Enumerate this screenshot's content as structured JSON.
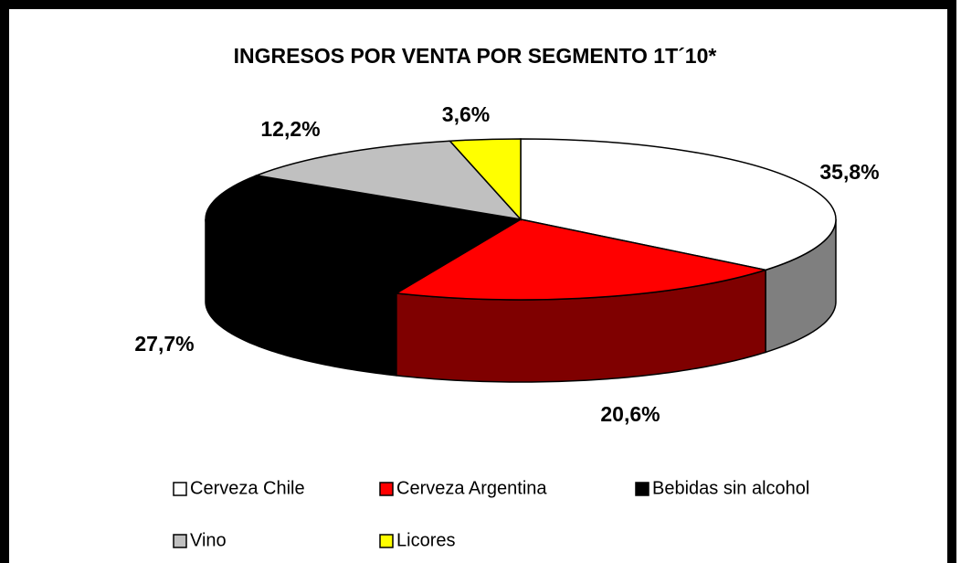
{
  "chart_data": {
    "type": "pie3d",
    "title": "INGRESOS POR VENTA POR SEGMENTO 1T´10*",
    "categories": [
      "Cerveza Chile",
      "Cerveza Argentina",
      "Bebidas sin alcohol",
      "Vino",
      "Licores"
    ],
    "values": [
      35.8,
      20.6,
      27.7,
      12.2,
      3.6
    ],
    "value_labels": [
      "35,8%",
      "20,6%",
      "27,7%",
      "12,2%",
      "3,6%"
    ],
    "colors": [
      "#ffffff",
      "#ff0000",
      "#000000",
      "#c0c0c0",
      "#ffff00"
    ],
    "legend": "bottom"
  }
}
